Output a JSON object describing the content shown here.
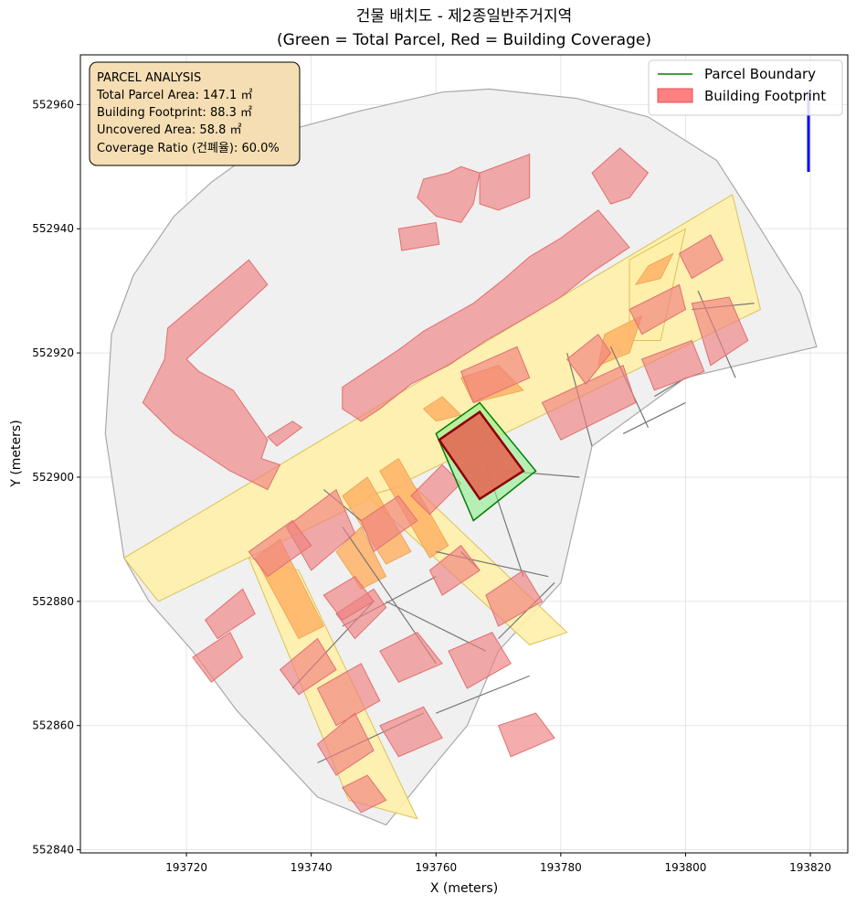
{
  "chart_data": {
    "type": "map",
    "title_line1": "건물 배치도 - 제2종일반주거지역",
    "title_line2": "(Green = Total Parcel, Red = Building Coverage)",
    "xlabel": "X (meters)",
    "ylabel": "Y (meters)",
    "xlim": [
      193703,
      193826
    ],
    "ylim": [
      552839.5,
      552968
    ],
    "xticks": [
      193720,
      193740,
      193760,
      193780,
      193800,
      193820
    ],
    "yticks": [
      552840,
      552860,
      552880,
      552900,
      552920,
      552940,
      552960
    ],
    "grid": true,
    "legend_position": "top-right",
    "legend": [
      {
        "label": "Parcel Boundary",
        "kind": "line",
        "color": "#008000"
      },
      {
        "label": "Building Footprint",
        "kind": "patch",
        "color": "#ff8080"
      }
    ],
    "info_box": {
      "lines": [
        "PARCEL ANALYSIS",
        "Total Parcel Area: 147.1 ㎡",
        "Building Footprint: 88.3 ㎡",
        "Uncovered Area: 58.8 ㎡",
        "Coverage Ratio (건폐율): 60.0%"
      ]
    },
    "target_parcel": {
      "label": "Parcel Boundary",
      "area_m2": 147.1,
      "coords": [
        [
          193760,
          552907
        ],
        [
          193767,
          552912
        ],
        [
          193776,
          552901
        ],
        [
          193766,
          552893
        ]
      ]
    },
    "target_building": {
      "label": "Building Footprint",
      "area_m2": 88.3,
      "coverage_ratio_pct": 60.0,
      "coords": [
        [
          193760.5,
          552906
        ],
        [
          193767,
          552910.5
        ],
        [
          193774,
          552901
        ],
        [
          193767,
          552896.5
        ]
      ]
    },
    "background_area": [
      [
        193710,
        552887
      ],
      [
        193707,
        552907
      ],
      [
        193708,
        552923
      ],
      [
        193711.5,
        552932.5
      ],
      [
        193718,
        552942
      ],
      [
        193724,
        552947.5
      ],
      [
        193735,
        552955.5
      ],
      [
        193748,
        552959
      ],
      [
        193761,
        552962
      ],
      [
        193768.5,
        552962.5
      ],
      [
        193782.5,
        552961
      ],
      [
        193794,
        552958
      ],
      [
        193805,
        552951
      ],
      [
        193812,
        552940
      ],
      [
        193818.5,
        552929.5
      ],
      [
        193821,
        552921
      ],
      [
        193800,
        552916
      ],
      [
        193785,
        552905
      ],
      [
        193783,
        552896
      ],
      [
        193780,
        552883
      ],
      [
        193770,
        552872
      ],
      [
        193765,
        552860
      ],
      [
        193760,
        552854
      ],
      [
        193752,
        552844
      ],
      [
        193741,
        552848.5
      ],
      [
        193728,
        552862.5
      ],
      [
        193721,
        552872
      ],
      [
        193714,
        552880
      ]
    ],
    "roads": [
      [
        [
          193710,
          552887
        ],
        [
          193715.5,
          552880
        ],
        [
          193812,
          552927
        ],
        [
          193807.5,
          552945.5
        ]
      ],
      [
        [
          193730,
          552887
        ],
        [
          193738,
          552885
        ],
        [
          193757,
          552845
        ],
        [
          193746,
          552848
        ]
      ],
      [
        [
          193749,
          552897
        ],
        [
          193756,
          552899
        ],
        [
          193781,
          552875
        ],
        [
          193775,
          552873
        ]
      ],
      [
        [
          193791,
          552935
        ],
        [
          193800,
          552940
        ],
        [
          193796,
          552922
        ],
        [
          193791,
          552922
        ]
      ]
    ],
    "roadside_strips": [
      [
        [
          193731,
          552887
        ],
        [
          193735,
          552890
        ],
        [
          193742,
          552876
        ],
        [
          193738,
          552874
        ]
      ],
      [
        [
          193745,
          552897
        ],
        [
          193749,
          552900
        ],
        [
          193756,
          552888
        ],
        [
          193752,
          552886
        ]
      ],
      [
        [
          193751,
          552901
        ],
        [
          193754,
          552903
        ],
        [
          193762,
          552889
        ],
        [
          193759,
          552887
        ]
      ],
      [
        [
          193764,
          552916
        ],
        [
          193770,
          552918
        ],
        [
          193774,
          552914
        ],
        [
          193766,
          552912
        ]
      ],
      [
        [
          193787,
          552923
        ],
        [
          193793,
          552926
        ],
        [
          193791,
          552920
        ],
        [
          193786,
          552918
        ]
      ],
      [
        [
          193794,
          552934
        ],
        [
          193798,
          552936
        ],
        [
          193796,
          552932
        ],
        [
          193792,
          552931
        ]
      ],
      [
        [
          193744,
          552888
        ],
        [
          193748,
          552892
        ],
        [
          193752,
          552884
        ],
        [
          193748,
          552882
        ]
      ],
      [
        [
          193758,
          552911
        ],
        [
          193761,
          552913
        ],
        [
          193764,
          552910
        ],
        [
          193760,
          552909
        ]
      ]
    ],
    "lot_lines": [
      [
        [
          193745,
          552892
        ],
        [
          193760,
          552870
        ]
      ],
      [
        [
          193752,
          552880
        ],
        [
          193768,
          552872
        ]
      ],
      [
        [
          193760,
          552888
        ],
        [
          193778,
          552884
        ]
      ],
      [
        [
          193770,
          552874
        ],
        [
          193779,
          552883
        ]
      ],
      [
        [
          193760,
          552862
        ],
        [
          193775,
          552868
        ]
      ],
      [
        [
          193737,
          552866
        ],
        [
          193750,
          552880
        ]
      ],
      [
        [
          193745,
          552876
        ],
        [
          193760,
          552884
        ]
      ],
      [
        [
          193741,
          552854
        ],
        [
          193758,
          552862
        ]
      ],
      [
        [
          193781,
          552920
        ],
        [
          193785,
          552905
        ]
      ],
      [
        [
          193788,
          552921
        ],
        [
          193794,
          552908
        ]
      ],
      [
        [
          193795,
          552913
        ],
        [
          193800,
          552916
        ]
      ],
      [
        [
          193790,
          552907
        ],
        [
          193800,
          552912
        ]
      ],
      [
        [
          193783,
          552900
        ],
        [
          193771,
          552901
        ]
      ],
      [
        [
          193768,
          552902
        ],
        [
          193774,
          552884
        ]
      ],
      [
        [
          193742,
          552898
        ],
        [
          193748,
          552893
        ]
      ],
      [
        [
          193764,
          552888
        ],
        [
          193767,
          552885
        ]
      ],
      [
        [
          193802,
          552930
        ],
        [
          193808,
          552916
        ]
      ],
      [
        [
          193801,
          552927
        ],
        [
          193811,
          552928
        ]
      ]
    ],
    "buildings": [
      [
        [
          193717,
          552924
        ],
        [
          193730,
          552935
        ],
        [
          193733,
          552931
        ],
        [
          193720,
          552919
        ],
        [
          193722,
          552917
        ],
        [
          193727.5,
          552914
        ],
        [
          193733,
          552906
        ],
        [
          193732,
          552903
        ],
        [
          193735,
          552902
        ],
        [
          193733,
          552898
        ],
        [
          193727,
          552901
        ],
        [
          193718,
          552907
        ],
        [
          193713,
          552912
        ],
        [
          193715,
          552916
        ],
        [
          193716.5,
          552919
        ]
      ],
      [
        [
          193733,
          552906.5
        ],
        [
          193737,
          552909
        ],
        [
          193738.5,
          552908
        ],
        [
          193734.5,
          552905
        ]
      ],
      [
        [
          193745,
          552914.5
        ],
        [
          193754,
          552920.5
        ],
        [
          193756,
          552922
        ],
        [
          193758,
          552923.5
        ],
        [
          193766,
          552928
        ],
        [
          193771,
          552932
        ],
        [
          193775,
          552935.5
        ],
        [
          193780,
          552938.5
        ],
        [
          193786,
          552943
        ],
        [
          193791,
          552937
        ],
        [
          193785,
          552933
        ],
        [
          193780,
          552929
        ],
        [
          193775,
          552926
        ],
        [
          193768,
          552922
        ],
        [
          193762,
          552918
        ],
        [
          193756,
          552915
        ],
        [
          193751,
          552911
        ],
        [
          193748,
          552909
        ],
        [
          193745,
          552911
        ]
      ],
      [
        [
          193754,
          552940
        ],
        [
          193760,
          552941
        ],
        [
          193760.5,
          552937.5
        ],
        [
          193754.5,
          552936.5
        ]
      ],
      [
        [
          193758,
          552948
        ],
        [
          193762,
          552949
        ],
        [
          193764,
          552950
        ],
        [
          193767,
          552949
        ],
        [
          193766,
          552944
        ],
        [
          193764,
          552941
        ],
        [
          193760,
          552942
        ],
        [
          193757,
          552945
        ]
      ],
      [
        [
          193767,
          552949
        ],
        [
          193775,
          552952
        ],
        [
          193775,
          552945
        ],
        [
          193770,
          552943
        ],
        [
          193767,
          552944
        ]
      ],
      [
        [
          193785,
          552949
        ],
        [
          193789.5,
          552953
        ],
        [
          193794,
          552949
        ],
        [
          193791,
          552945
        ],
        [
          193788,
          552944
        ]
      ],
      [
        [
          193777,
          552912
        ],
        [
          193790,
          552918
        ],
        [
          193792,
          552912
        ],
        [
          193780,
          552906
        ]
      ],
      [
        [
          193764,
          552917
        ],
        [
          193773,
          552921
        ],
        [
          193775,
          552916
        ],
        [
          193766,
          552912
        ]
      ],
      [
        [
          193781,
          552919
        ],
        [
          193786,
          552923
        ],
        [
          193788,
          552920
        ],
        [
          193784,
          552915
        ]
      ],
      [
        [
          193791,
          552927
        ],
        [
          193799,
          552931
        ],
        [
          193800,
          552927
        ],
        [
          193793,
          552923
        ]
      ],
      [
        [
          193793,
          552919
        ],
        [
          193801,
          552922
        ],
        [
          193803,
          552917
        ],
        [
          193795,
          552914
        ]
      ],
      [
        [
          193799,
          552936
        ],
        [
          193804,
          552939
        ],
        [
          193806,
          552935
        ],
        [
          193801,
          552932
        ]
      ],
      [
        [
          193801,
          552928
        ],
        [
          193807,
          552929
        ],
        [
          193810,
          552922
        ],
        [
          193804,
          552918
        ]
      ],
      [
        [
          193748,
          552893
        ],
        [
          193754,
          552897
        ],
        [
          193757,
          552893
        ],
        [
          193750,
          552888
        ]
      ],
      [
        [
          193736,
          552892
        ],
        [
          193744,
          552898
        ],
        [
          193747,
          552891
        ],
        [
          193740,
          552885
        ]
      ],
      [
        [
          193730,
          552888
        ],
        [
          193737,
          552893
        ],
        [
          193740,
          552889
        ],
        [
          193733,
          552884
        ]
      ],
      [
        [
          193744,
          552878
        ],
        [
          193750,
          552882
        ],
        [
          193752,
          552879
        ],
        [
          193747,
          552874
        ]
      ],
      [
        [
          193756,
          552897
        ],
        [
          193761,
          552902
        ],
        [
          193764,
          552899
        ],
        [
          193759,
          552894
        ]
      ],
      [
        [
          193759,
          552885
        ],
        [
          193764,
          552889
        ],
        [
          193767,
          552885
        ],
        [
          193761,
          552881
        ]
      ],
      [
        [
          193751,
          552872
        ],
        [
          193757,
          552875
        ],
        [
          193761,
          552870
        ],
        [
          193754,
          552867
        ]
      ],
      [
        [
          193762,
          552872
        ],
        [
          193769,
          552875
        ],
        [
          193772,
          552870
        ],
        [
          193765,
          552866
        ]
      ],
      [
        [
          193768,
          552881
        ],
        [
          193774,
          552885
        ],
        [
          193777,
          552880
        ],
        [
          193770,
          552876
        ]
      ],
      [
        [
          193741,
          552866
        ],
        [
          193748,
          552870
        ],
        [
          193751,
          552864
        ],
        [
          193744,
          552860
        ]
      ],
      [
        [
          193735,
          552869
        ],
        [
          193741,
          552874
        ],
        [
          193744,
          552869
        ],
        [
          193738,
          552865
        ]
      ],
      [
        [
          193741,
          552857
        ],
        [
          193747,
          552862
        ],
        [
          193750,
          552856
        ],
        [
          193744,
          552852
        ]
      ],
      [
        [
          193751,
          552860
        ],
        [
          193758,
          552863
        ],
        [
          193761,
          552858
        ],
        [
          193754,
          552855
        ]
      ],
      [
        [
          193723,
          552877
        ],
        [
          193729,
          552882
        ],
        [
          193731,
          552878
        ],
        [
          193725,
          552874
        ]
      ],
      [
        [
          193721,
          552871
        ],
        [
          193727,
          552875
        ],
        [
          193729,
          552871
        ],
        [
          193724,
          552867
        ]
      ],
      [
        [
          193742,
          552881
        ],
        [
          193747,
          552884
        ],
        [
          193750,
          552880
        ],
        [
          193745,
          552877
        ]
      ],
      [
        [
          193770,
          552860
        ],
        [
          193776,
          552862
        ],
        [
          193779,
          552858
        ],
        [
          193772,
          552855
        ]
      ],
      [
        [
          193745,
          552850
        ],
        [
          193749,
          552852
        ],
        [
          193752,
          552848
        ],
        [
          193748,
          552846
        ]
      ]
    ]
  }
}
